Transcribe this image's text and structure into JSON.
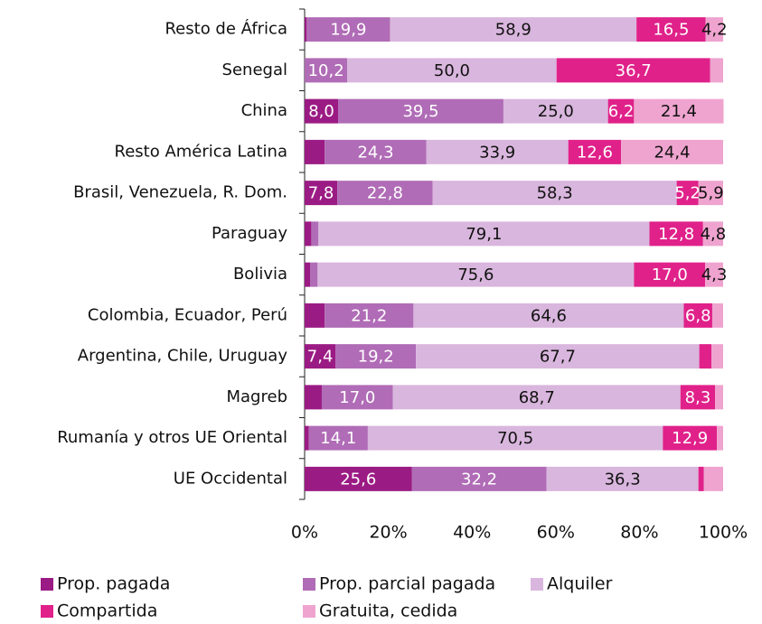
{
  "chart_data": {
    "type": "stacked_bar_horizontal",
    "categories": [
      "Resto de África",
      "Senegal",
      "China",
      "Resto América Latina",
      "Brasil, Venezuela, R. Dom.",
      "Paraguay",
      "Bolivia",
      "Colombia, Ecuador, Perú",
      "Argentina, Chile, Uruguay",
      "Magreb",
      "Rumanía y otros UE Oriental",
      "UE Occidental"
    ],
    "series": [
      {
        "name": "Prop. pagada",
        "color": "#9b1b84",
        "label_color": "#ffffff",
        "values": [
          0.5,
          0,
          8.0,
          4.8,
          7.8,
          1.6,
          1.3,
          4.8,
          7.4,
          4.1,
          1.0,
          25.6
        ],
        "value_labels": [
          null,
          null,
          "8,0",
          null,
          "7,8",
          null,
          null,
          null,
          "7,4",
          null,
          null,
          "25,6"
        ]
      },
      {
        "name": "Prop. parcial pagada",
        "color": "#b06cb6",
        "label_color": "#ffffff",
        "values": [
          19.9,
          10.2,
          39.5,
          24.3,
          22.8,
          1.7,
          1.8,
          21.2,
          19.2,
          17.0,
          14.1,
          32.2
        ],
        "value_labels": [
          "19,9",
          "10,2",
          "39,5",
          "24,3",
          "22,8",
          null,
          null,
          "21,2",
          "19,2",
          "17,0",
          "14,1",
          "32,2"
        ]
      },
      {
        "name": "Alquiler",
        "color": "#d9b6dd",
        "label_color": "#111111",
        "values": [
          58.9,
          50.0,
          25.0,
          33.9,
          58.3,
          79.1,
          75.6,
          64.6,
          67.7,
          68.7,
          70.5,
          36.3
        ],
        "value_labels": [
          "58,9",
          "50,0",
          "25,0",
          "33,9",
          "58,3",
          "79,1",
          "75,6",
          "64,6",
          "67,7",
          "68,7",
          "70,5",
          "36,3"
        ]
      },
      {
        "name": "Compartida",
        "color": "#e0218a",
        "label_color": "#ffffff",
        "values": [
          16.5,
          36.7,
          6.2,
          12.6,
          5.2,
          12.8,
          17.0,
          6.8,
          2.9,
          8.3,
          12.9,
          1.3
        ],
        "value_labels": [
          "16,5",
          "36,7",
          "6,2",
          "12,6",
          "5,2",
          "12,8",
          "17,0",
          "6,8",
          null,
          "8,3",
          "12,9",
          null
        ]
      },
      {
        "name": "Gratuita, cedida",
        "color": "#efa4cf",
        "label_color": "#111111",
        "values": [
          4.2,
          3.1,
          21.4,
          24.4,
          5.9,
          4.8,
          4.3,
          2.6,
          2.8,
          1.9,
          1.5,
          4.6
        ],
        "value_labels": [
          "4,2",
          null,
          "21,4",
          "24,4",
          "5,9",
          "4,8",
          "4,3",
          null,
          null,
          null,
          null,
          null
        ]
      }
    ],
    "xlim": [
      0,
      100
    ],
    "xticks": [
      {
        "value": 0,
        "label": "0%"
      },
      {
        "value": 20,
        "label": "20%"
      },
      {
        "value": 40,
        "label": "40%"
      },
      {
        "value": 60,
        "label": "60%"
      },
      {
        "value": 80,
        "label": "80%"
      },
      {
        "value": 100,
        "label": "100%"
      }
    ],
    "grid": false
  }
}
